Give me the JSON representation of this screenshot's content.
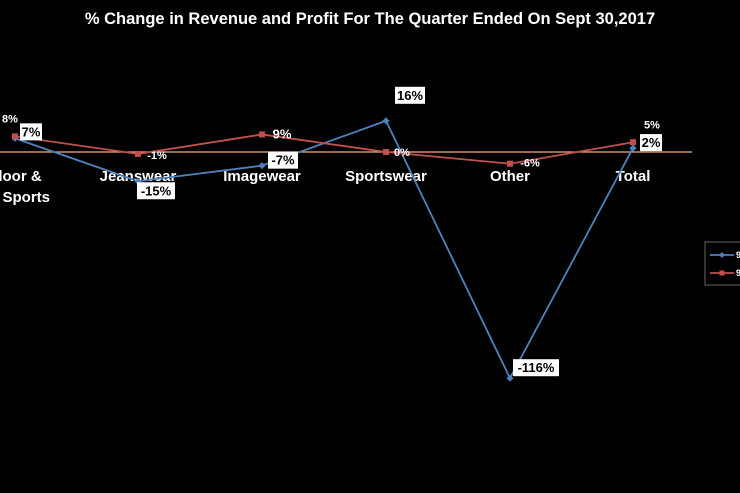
{
  "chart_data": {
    "type": "line",
    "title": "% Change in Revenue and Profit For The Quarter Ended On Sept 30,2017",
    "categories": [
      "Outdoor & Action Sports",
      "Jeanswear",
      "Imagewear",
      "Sportswear",
      "Other",
      "Total"
    ],
    "category_display": [
      [
        "tdoor &",
        "on Sports"
      ],
      [
        "Jeanswear"
      ],
      [
        "Imagewear"
      ],
      [
        "Sportswear"
      ],
      [
        "Other"
      ],
      [
        "Total"
      ]
    ],
    "series": [
      {
        "values": [
          7,
          -15,
          -7,
          16,
          -116,
          2
        ],
        "labels": [
          "7%",
          "-15%",
          "-7%",
          "16%",
          "-116%",
          "2%"
        ],
        "color": "#4F81BD",
        "marker": "diamond"
      },
      {
        "values": [
          8,
          -1,
          9,
          0,
          -6,
          5
        ],
        "labels": [
          "8%",
          "-1%",
          "9%",
          "0%",
          "-6%",
          "5%"
        ],
        "color": "#C0504D",
        "marker": "square"
      }
    ],
    "legend": {
      "position": "right",
      "visible_text": [
        "9",
        "9"
      ]
    },
    "zero_line_color": "#F4B183",
    "grid": false
  }
}
